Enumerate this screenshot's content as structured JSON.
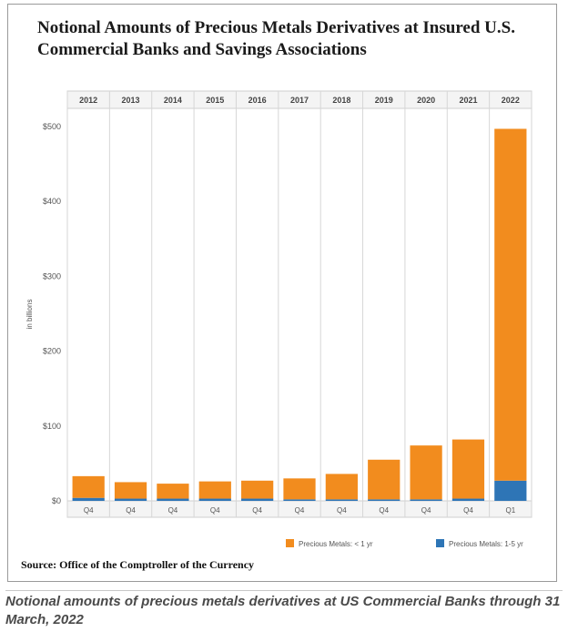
{
  "chart_data": {
    "type": "bar",
    "stacked": true,
    "title": "Notional Amounts of Precious Metals Derivatives at Insured U.S. Commercial Banks and Savings Associations",
    "ylabel": "in billions",
    "ylim": [
      0,
      500
    ],
    "yticks": [
      "$0",
      "$100",
      "$200",
      "$300",
      "$400",
      "$500"
    ],
    "categories": [
      "2012",
      "2013",
      "2014",
      "2015",
      "2016",
      "2017",
      "2018",
      "2019",
      "2020",
      "2021",
      "2022"
    ],
    "quarters": [
      "Q4",
      "Q4",
      "Q4",
      "Q4",
      "Q4",
      "Q4",
      "Q4",
      "Q4",
      "Q4",
      "Q4",
      "Q1"
    ],
    "series": [
      {
        "name": "Precious Metals: 1-5 yr",
        "color": "#2e75b6",
        "values": [
          4,
          3,
          3,
          3,
          3,
          2,
          2,
          2,
          2,
          3,
          27
        ]
      },
      {
        "name": "Precious Metals: < 1 yr",
        "color": "#f28c1e",
        "values": [
          29,
          22,
          20,
          23,
          24,
          28,
          34,
          53,
          72,
          79,
          470
        ]
      }
    ],
    "legend": [
      {
        "label": "Precious Metals: < 1 yr",
        "color": "#f28c1e"
      },
      {
        "label": "Precious Metals: 1-5 yr",
        "color": "#2e75b6"
      }
    ]
  },
  "source": "Source: Office of the Comptroller of the Currency",
  "caption": "Notional amounts of precious metals derivatives at US Commercial Banks through 31 March, 2022"
}
